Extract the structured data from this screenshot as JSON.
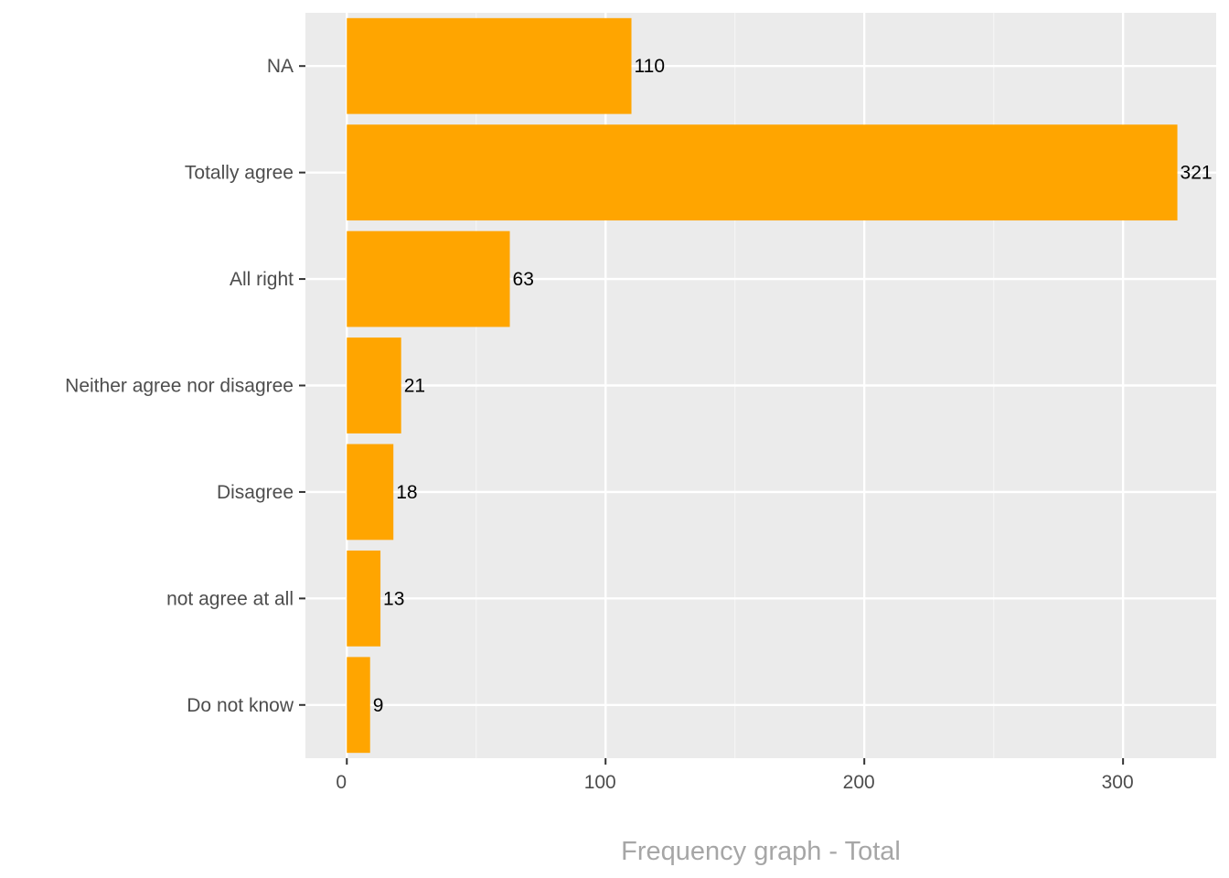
{
  "chart_data": {
    "type": "bar",
    "orientation": "horizontal",
    "categories": [
      "NA",
      "Totally agree",
      "All right",
      "Neither agree nor disagree",
      "Disagree",
      "not agree at all",
      "Do not know"
    ],
    "values": [
      110,
      321,
      63,
      21,
      18,
      13,
      9
    ],
    "xlabel": "Frequency graph - Total",
    "ylabel": "",
    "xlim": [
      -16,
      336
    ],
    "x_ticks": [
      0,
      100,
      200,
      300
    ],
    "x_tick_labels": [
      "0",
      "100",
      "200",
      "300"
    ],
    "grid": true,
    "legend": "none",
    "colors": {
      "bar": "#FFA500",
      "panel_background": "#EBEBEB",
      "grid_major": "#FFFFFF",
      "grid_minor": "#F5F5F5"
    }
  }
}
